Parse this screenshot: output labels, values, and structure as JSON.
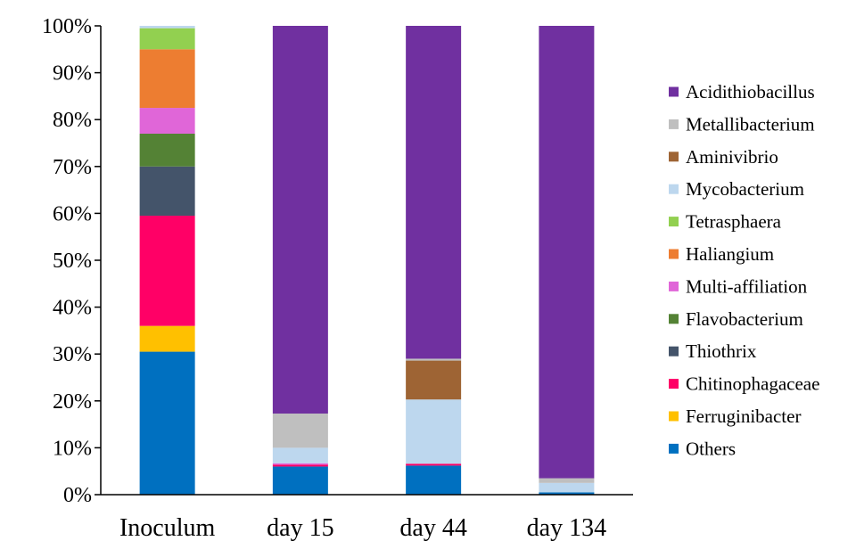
{
  "chart_data": {
    "type": "bar",
    "stacked": true,
    "normalized": true,
    "title": "",
    "xlabel": "",
    "ylabel": "",
    "ylim": [
      0,
      100
    ],
    "y_ticks": [
      "0%",
      "10%",
      "20%",
      "30%",
      "40%",
      "50%",
      "60%",
      "70%",
      "80%",
      "90%",
      "100%"
    ],
    "categories": [
      "Inoculum",
      "day 15",
      "day 44",
      "day 134"
    ],
    "legend_position": "right",
    "grid": false,
    "series": [
      {
        "name": "Others",
        "color": "#0070C0",
        "values": [
          30.5,
          6.0,
          6.2,
          0.5
        ]
      },
      {
        "name": "Ferruginibacter",
        "color": "#FFC000",
        "values": [
          5.5,
          0.0,
          0.0,
          0.0
        ]
      },
      {
        "name": "Chitinophagaceae",
        "color": "#FF0066",
        "values": [
          23.5,
          0.4,
          0.4,
          0.0
        ]
      },
      {
        "name": "Thiothrix",
        "color": "#44546A",
        "values": [
          10.5,
          0.0,
          0.0,
          0.0
        ]
      },
      {
        "name": "Flavobacterium",
        "color": "#548235",
        "values": [
          7.0,
          0.0,
          0.0,
          0.0
        ]
      },
      {
        "name": "Multi-affiliation",
        "color": "#E066D8",
        "values": [
          5.5,
          0.3,
          0.0,
          0.0
        ]
      },
      {
        "name": "Haliangium",
        "color": "#ED7D31",
        "values": [
          12.5,
          0.0,
          0.0,
          0.0
        ]
      },
      {
        "name": "Tetrasphaera",
        "color": "#92D050",
        "values": [
          4.5,
          0.0,
          0.0,
          0.0
        ]
      },
      {
        "name": "Mycobacterium",
        "color": "#BDD7EE",
        "values": [
          0.5,
          3.3,
          13.7,
          2.0
        ]
      },
      {
        "name": "Aminivibrio",
        "color": "#9E6434",
        "values": [
          0.0,
          0.0,
          8.3,
          0.0
        ]
      },
      {
        "name": "Metallibacterium",
        "color": "#BFBFBF",
        "values": [
          0.0,
          7.3,
          0.4,
          1.0
        ]
      },
      {
        "name": "Acidithiobacillus",
        "color": "#7030A0",
        "values": [
          0.0,
          82.7,
          71.0,
          96.5
        ]
      }
    ]
  }
}
